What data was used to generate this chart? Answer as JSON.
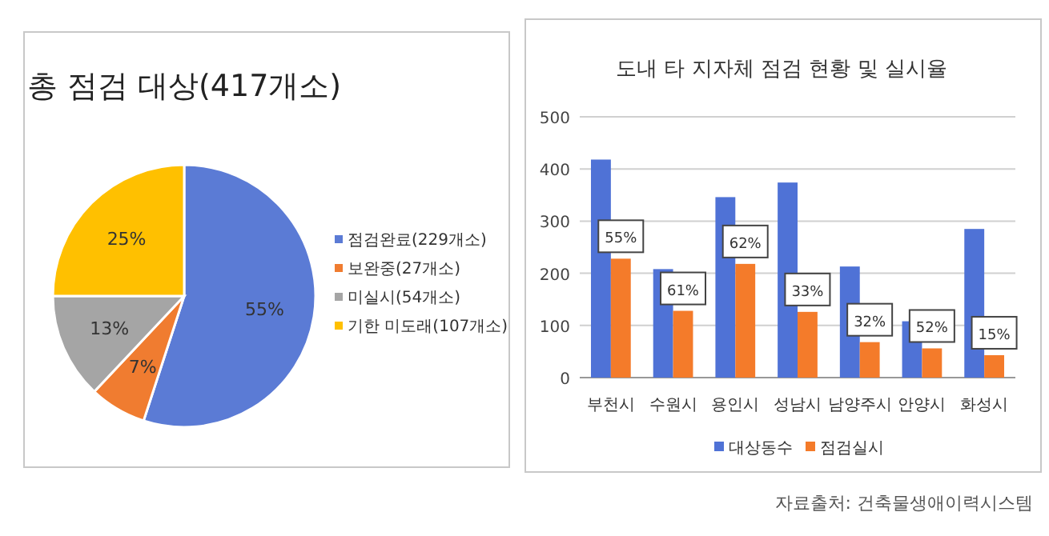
{
  "chart_data": [
    {
      "type": "pie",
      "title": "총 점검 대상(417개소)",
      "categories": [
        "점검완료(229개소)",
        "보완중(27개소)",
        "미실시(54개소)",
        "기한 미도래(107개소)"
      ],
      "values": [
        55,
        7,
        13,
        25
      ],
      "value_labels": [
        "55%",
        "7%",
        "13%",
        "25%"
      ],
      "colors": [
        "#5b7bd5",
        "#f07c30",
        "#a5a5a5",
        "#ffc000"
      ],
      "legend": "right"
    },
    {
      "type": "bar",
      "title": "도내 타 지자체 점검 현황 및 실시율",
      "categories": [
        "부천시",
        "수원시",
        "용인시",
        "성남시",
        "남양주시",
        "안양시",
        "화성시"
      ],
      "series": [
        {
          "name": "대상동수",
          "color": "#4f72d6",
          "values": [
            418,
            208,
            346,
            374,
            213,
            108,
            285
          ]
        },
        {
          "name": "점검실시",
          "color": "#f47b2a",
          "values": [
            228,
            128,
            218,
            126,
            68,
            56,
            43
          ]
        }
      ],
      "ylim": [
        0,
        500
      ],
      "yticks": [
        0,
        100,
        200,
        300,
        400,
        500
      ],
      "grid": "y",
      "legend": "bottom",
      "annotations": [
        {
          "text": "55%",
          "x": "부천시",
          "y": 228
        },
        {
          "text": "61%",
          "x": "수원시",
          "y": 128
        },
        {
          "text": "62%",
          "x": "용인시",
          "y": 218
        },
        {
          "text": "33%",
          "x": "성남시",
          "y": 126
        },
        {
          "text": "32%",
          "x": "남양주시",
          "y": 68
        },
        {
          "text": "52%",
          "x": "안양시",
          "y": 56
        },
        {
          "text": "15%",
          "x": "화성시",
          "y": 43
        },
        "자료출처: 건축물생애이력시스템"
      ]
    }
  ]
}
